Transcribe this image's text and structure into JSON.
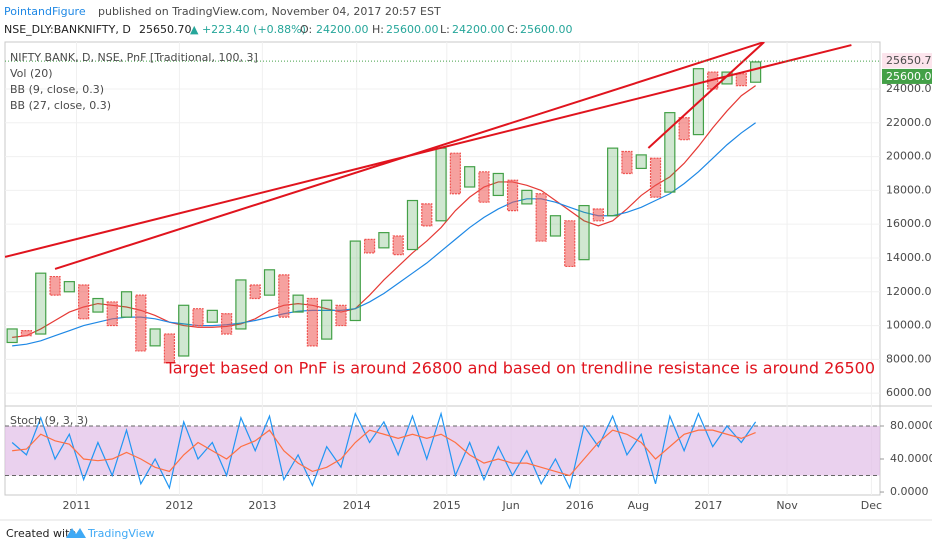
{
  "header": {
    "publisher": "PointandFigure",
    "published": "published on TradingView.com, November 04, 2017 20:57 EST",
    "symbol": "NSE_DLY:BANKNIFTY, D",
    "price": "25650.70",
    "change": "▲ +223.40 (+0.88%)",
    "open_label": "O:",
    "open": "24200.00",
    "high_label": "H:",
    "high": "25600.00",
    "low_label": "L:",
    "low": "24200.00",
    "close_label": "C:",
    "close": "25600.00"
  },
  "chart_data": {
    "type": "pnf",
    "legend": [
      "NIFTY BANK, D, NSE, PnF [Traditional, 100, 3]",
      "Vol (20)"
    ],
    "annotation": "Target based on PnF is around 26800 and based on trendline resistance is around 26500",
    "colors": {
      "up": "#43a047",
      "down": "#ef5350",
      "trend": "#e0141e"
    },
    "grid": true,
    "columns": [
      {
        "low": 9000,
        "high": 9800
      },
      {
        "low": 9400,
        "high": 9700
      },
      {
        "low": 9500,
        "high": 13100
      },
      {
        "low": 11800,
        "high": 12900
      },
      {
        "low": 12000,
        "high": 12600
      },
      {
        "low": 10400,
        "high": 12400
      },
      {
        "low": 10800,
        "high": 11600
      },
      {
        "low": 10000,
        "high": 11400
      },
      {
        "low": 10500,
        "high": 12000
      },
      {
        "low": 8500,
        "high": 11800
      },
      {
        "low": 8800,
        "high": 9800
      },
      {
        "low": 7800,
        "high": 9500
      },
      {
        "low": 8200,
        "high": 11200
      },
      {
        "low": 10000,
        "high": 11000
      },
      {
        "low": 10200,
        "high": 10900
      },
      {
        "low": 9500,
        "high": 10700
      },
      {
        "low": 9800,
        "high": 12700
      },
      {
        "low": 11600,
        "high": 12400
      },
      {
        "low": 11800,
        "high": 13300
      },
      {
        "low": 10500,
        "high": 13000
      },
      {
        "low": 10800,
        "high": 11800
      },
      {
        "low": 8800,
        "high": 11600
      },
      {
        "low": 9200,
        "high": 11500
      },
      {
        "low": 10000,
        "high": 11200
      },
      {
        "low": 10300,
        "high": 15000
      },
      {
        "low": 14300,
        "high": 15100
      },
      {
        "low": 14600,
        "high": 15500
      },
      {
        "low": 14200,
        "high": 15300
      },
      {
        "low": 14500,
        "high": 17400
      },
      {
        "low": 15900,
        "high": 17200
      },
      {
        "low": 16200,
        "high": 20500
      },
      {
        "low": 17800,
        "high": 20200
      },
      {
        "low": 18200,
        "high": 19400
      },
      {
        "low": 17300,
        "high": 19100
      },
      {
        "low": 17700,
        "high": 19000
      },
      {
        "low": 16800,
        "high": 18600
      },
      {
        "low": 17200,
        "high": 18000
      },
      {
        "low": 15000,
        "high": 17800
      },
      {
        "low": 15300,
        "high": 16500
      },
      {
        "low": 13500,
        "high": 16200
      },
      {
        "low": 13900,
        "high": 17100
      },
      {
        "low": 16200,
        "high": 16900
      },
      {
        "low": 16500,
        "high": 20500
      },
      {
        "low": 19000,
        "high": 20300
      },
      {
        "low": 19300,
        "high": 20100
      },
      {
        "low": 17600,
        "high": 19900
      },
      {
        "low": 17900,
        "high": 22600
      },
      {
        "low": 21000,
        "high": 22300
      },
      {
        "low": 21300,
        "high": 25200
      },
      {
        "low": 24000,
        "high": 25000
      },
      {
        "low": 24300,
        "high": 25000
      },
      {
        "low": 24200,
        "high": 24900
      },
      {
        "low": 24400,
        "high": 25600
      }
    ],
    "overlays": [
      {
        "name": "BB (9, close, 0.3)",
        "color": "#e53935",
        "values": [
          9300,
          9400,
          9800,
          10300,
          10800,
          11100,
          11300,
          11200,
          11100,
          10900,
          10600,
          10200,
          10000,
          9900,
          9900,
          9950,
          10100,
          10400,
          10900,
          11200,
          11300,
          11200,
          11000,
          10800,
          11000,
          11800,
          12700,
          13500,
          14300,
          15000,
          15800,
          16800,
          17600,
          18200,
          18500,
          18500,
          18300,
          18000,
          17400,
          16800,
          16200,
          15900,
          16200,
          16900,
          17700,
          18300,
          18800,
          19600,
          20600,
          21700,
          22700,
          23600,
          24200
        ]
      },
      {
        "name": "BB (27, close, 0.3)",
        "color": "#1e88e5",
        "values": [
          8800,
          8900,
          9100,
          9400,
          9700,
          10000,
          10200,
          10400,
          10500,
          10500,
          10400,
          10200,
          10100,
          10000,
          10000,
          10050,
          10150,
          10300,
          10500,
          10700,
          10850,
          10900,
          10900,
          10900,
          11000,
          11400,
          11900,
          12500,
          13100,
          13700,
          14400,
          15100,
          15800,
          16400,
          16900,
          17300,
          17500,
          17500,
          17300,
          17000,
          16700,
          16500,
          16500,
          16700,
          17000,
          17400,
          17800,
          18400,
          19100,
          19900,
          20700,
          21400,
          22000
        ]
      }
    ],
    "trendlines": [
      {
        "x": [
          -0.5,
          58.7
        ],
        "values": [
          14060,
          26600
        ]
      },
      {
        "x": [
          3.0,
          52.6
        ],
        "values": [
          13350,
          26780
        ]
      },
      {
        "x": [
          44.5,
          52.6
        ],
        "values": [
          20510,
          26780
        ]
      }
    ],
    "last_price": {
      "value": 25650.7,
      "label": "25650.70"
    },
    "close_price": {
      "value": 25600,
      "label": "25600.00"
    },
    "xlim": [
      -0.5,
      60.7
    ],
    "xticks": [
      {
        "value": 4.5,
        "label": "2011"
      },
      {
        "value": 11.7,
        "label": "2012"
      },
      {
        "value": 17.5,
        "label": "2013"
      },
      {
        "value": 24.1,
        "label": "2014"
      },
      {
        "value": 30.4,
        "label": "2015"
      },
      {
        "value": 34.9,
        "label": "Jun"
      },
      {
        "value": 39.7,
        "label": "2016"
      },
      {
        "value": 43.8,
        "label": "Aug"
      },
      {
        "value": 48.7,
        "label": "2017"
      },
      {
        "value": 54.2,
        "label": "Nov"
      },
      {
        "value": 60.1,
        "label": "Dec"
      }
    ],
    "ylim": [
      5300,
      26780
    ],
    "yticks": [
      {
        "value": 6000,
        "label": "6000.00"
      },
      {
        "value": 8000,
        "label": "8000.00"
      },
      {
        "value": 10000,
        "label": "10000.00"
      },
      {
        "value": 12000,
        "label": "12000.00"
      },
      {
        "value": 14000,
        "label": "14000.00"
      },
      {
        "value": 16000,
        "label": "16000.00"
      },
      {
        "value": 18000,
        "label": "18000.00"
      },
      {
        "value": 20000,
        "label": "20000.00"
      },
      {
        "value": 22000,
        "label": "22000.00"
      },
      {
        "value": 24000,
        "label": "24000.00"
      }
    ],
    "stoch": {
      "name": "Stoch (9, 3, 3)",
      "band": [
        20,
        80
      ],
      "band_color": "#e1bee7",
      "ylim": [
        -3.6,
        101.8
      ],
      "yticks": [
        {
          "value": 0,
          "label": "0.0000"
        },
        {
          "value": 40,
          "label": "40.0000"
        },
        {
          "value": 80,
          "label": "80.0000"
        }
      ],
      "series": [
        {
          "color": "#2196f3",
          "values": [
            60,
            45,
            90,
            40,
            70,
            15,
            60,
            20,
            75,
            10,
            40,
            5,
            85,
            40,
            60,
            20,
            90,
            50,
            92,
            15,
            45,
            8,
            55,
            30,
            95,
            60,
            85,
            45,
            92,
            40,
            95,
            20,
            60,
            15,
            55,
            20,
            50,
            10,
            40,
            5,
            80,
            55,
            92,
            45,
            70,
            10,
            92,
            50,
            95,
            55,
            80,
            60,
            85
          ]
        },
        {
          "color": "#ff7043",
          "values": [
            50,
            52,
            70,
            62,
            58,
            40,
            38,
            40,
            48,
            40,
            30,
            25,
            45,
            60,
            50,
            40,
            55,
            62,
            75,
            50,
            35,
            25,
            30,
            40,
            60,
            75,
            70,
            65,
            70,
            65,
            70,
            60,
            45,
            35,
            40,
            35,
            35,
            30,
            25,
            20,
            40,
            60,
            75,
            70,
            60,
            40,
            55,
            70,
            75,
            75,
            70,
            65,
            72
          ]
        }
      ]
    }
  },
  "footer": {
    "created": "Created with",
    "brand": "TradingView"
  }
}
